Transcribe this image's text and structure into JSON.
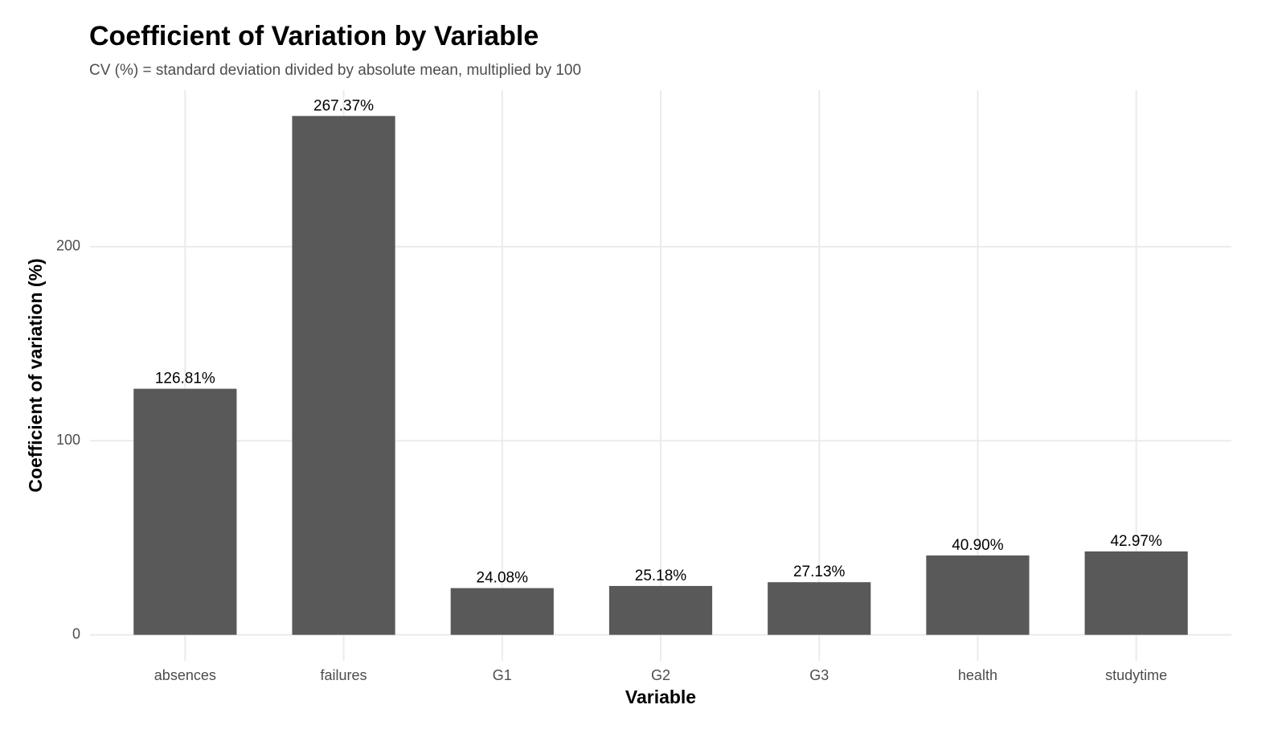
{
  "chart_data": {
    "type": "bar",
    "title": "Coefficient of Variation by Variable",
    "subtitle": "CV (%) = standard deviation divided by absolute mean, multiplied by 100",
    "x_label": "Variable",
    "y_label": "Coefficient of variation (%)",
    "categories": [
      "absences",
      "failures",
      "G1",
      "G2",
      "G3",
      "health",
      "studytime"
    ],
    "values": [
      126.81,
      267.37,
      24.08,
      25.18,
      27.13,
      40.9,
      42.97
    ],
    "value_labels": [
      "126.81%",
      "267.37%",
      "24.08%",
      "25.18%",
      "27.13%",
      "40.90%",
      "42.97%"
    ],
    "color": "#595959",
    "ylim": [
      -13.37,
      280.74
    ],
    "yticks": [
      0,
      100,
      200
    ],
    "grid": true
  }
}
